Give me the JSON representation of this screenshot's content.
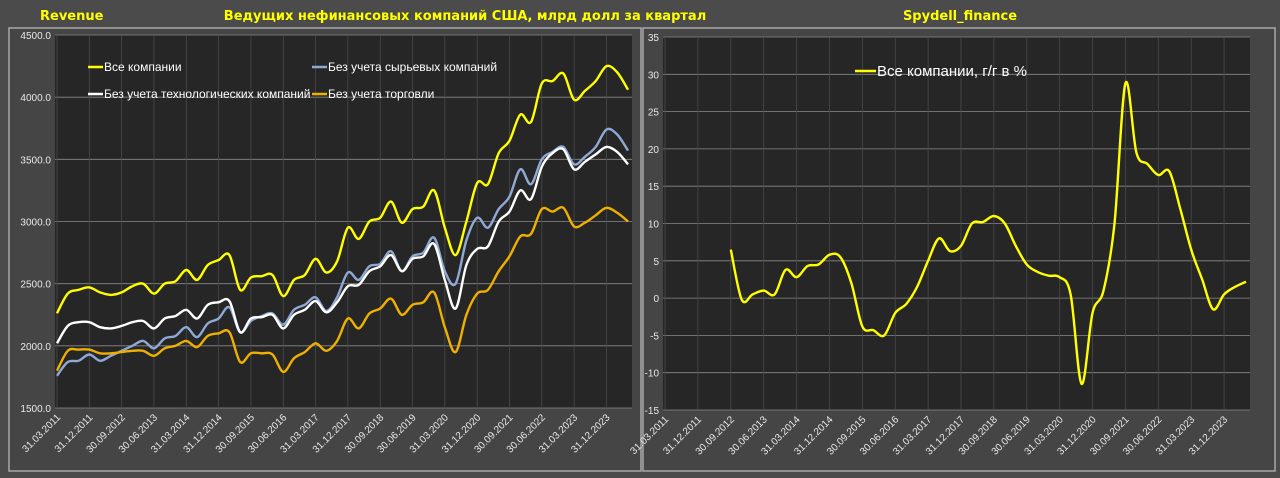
{
  "header": {
    "left_label": "Revenue",
    "main_title": "Ведущих нефинансовых компаний США, млрд долл за квартал",
    "right_label": "Spydell_finance"
  },
  "colors": {
    "yellow": "#ffff00",
    "white": "#ffffff",
    "blue": "#8fa9d6",
    "orange": "#f0b000"
  },
  "chart_data": [
    {
      "type": "line",
      "title": "Ведущих нефинансовых компаний США, млрд долл за квартал",
      "xlabel": "",
      "ylabel": "",
      "ylim": [
        1500,
        4500
      ],
      "yticks": [
        "1500.0",
        "2000.0",
        "2500.0",
        "3000.0",
        "3500.0",
        "4000.0",
        "4500.0"
      ],
      "x_tick_labels": [
        "31.03.2011",
        "31.12.2011",
        "30.09.2012",
        "30.06.2013",
        "31.03.2014",
        "31.12.2014",
        "30.09.2015",
        "30.06.2016",
        "31.03.2017",
        "31.12.2017",
        "30.09.2018",
        "30.06.2019",
        "31.03.2020",
        "31.12.2020",
        "30.09.2021",
        "30.06.2022",
        "31.03.2023",
        "31.12.2023"
      ],
      "x_tick_every_quarters": 3,
      "n_points": 54,
      "grid": true,
      "legend": "top, two columns",
      "series": [
        {
          "name": "Все компании",
          "color": "#ffff00",
          "values": [
            2262,
            2420,
            2450,
            2470,
            2430,
            2410,
            2430,
            2480,
            2500,
            2420,
            2500,
            2520,
            2610,
            2530,
            2650,
            2690,
            2730,
            2450,
            2550,
            2560,
            2570,
            2400,
            2530,
            2570,
            2700,
            2590,
            2680,
            2950,
            2860,
            3000,
            3030,
            3160,
            2990,
            3100,
            3120,
            3250,
            2950,
            2730,
            3000,
            3310,
            3300,
            3550,
            3650,
            3860,
            3800,
            4110,
            4130,
            4190,
            3980,
            4050,
            4130,
            4250,
            4200,
            4060
          ]
        },
        {
          "name": "Без учета сырьевых компаний",
          "color": "#8fa9d6",
          "values": [
            1760,
            1870,
            1880,
            1930,
            1880,
            1920,
            1960,
            2000,
            2040,
            1980,
            2060,
            2080,
            2150,
            2070,
            2180,
            2220,
            2310,
            2110,
            2200,
            2240,
            2260,
            2170,
            2290,
            2330,
            2390,
            2280,
            2390,
            2590,
            2530,
            2640,
            2660,
            2760,
            2600,
            2720,
            2750,
            2870,
            2600,
            2500,
            2850,
            3030,
            2950,
            3100,
            3200,
            3420,
            3300,
            3500,
            3560,
            3600,
            3460,
            3520,
            3600,
            3740,
            3700,
            3570
          ]
        },
        {
          "name": "Без учета технологических компаний",
          "color": "#ffffff",
          "values": [
            2020,
            2160,
            2190,
            2190,
            2150,
            2140,
            2160,
            2190,
            2200,
            2140,
            2220,
            2240,
            2290,
            2220,
            2330,
            2350,
            2360,
            2110,
            2220,
            2230,
            2250,
            2140,
            2250,
            2290,
            2360,
            2270,
            2350,
            2480,
            2490,
            2600,
            2640,
            2730,
            2600,
            2700,
            2720,
            2820,
            2530,
            2300,
            2650,
            2780,
            2800,
            3000,
            3080,
            3250,
            3180,
            3440,
            3550,
            3580,
            3420,
            3480,
            3540,
            3600,
            3560,
            3460
          ]
        },
        {
          "name": "Без учета торговли",
          "color": "#f0b000",
          "values": [
            1800,
            1960,
            1970,
            1970,
            1940,
            1940,
            1950,
            1960,
            1960,
            1920,
            1980,
            2000,
            2040,
            1990,
            2080,
            2100,
            2110,
            1870,
            1940,
            1940,
            1930,
            1790,
            1900,
            1950,
            2020,
            1960,
            2040,
            2220,
            2140,
            2260,
            2300,
            2380,
            2250,
            2330,
            2350,
            2430,
            2150,
            1950,
            2250,
            2420,
            2450,
            2600,
            2720,
            2880,
            2900,
            3100,
            3080,
            3110,
            2960,
            2990,
            3050,
            3110,
            3070,
            3000
          ]
        }
      ]
    },
    {
      "type": "line",
      "title": "",
      "xlabel": "",
      "ylabel": "",
      "ylim": [
        -15,
        35
      ],
      "yticks": [
        "-15",
        "-10",
        "-5",
        "0",
        "5",
        "10",
        "15",
        "20",
        "25",
        "30",
        "35"
      ],
      "x_tick_labels": [
        "31.03.2011",
        "31.12.2011",
        "30.09.2012",
        "30.06.2013",
        "31.03.2014",
        "31.12.2014",
        "30.09.2015",
        "30.06.2016",
        "31.03.2017",
        "31.12.2017",
        "30.09.2018",
        "30.06.2019",
        "31.03.2020",
        "31.12.2020",
        "30.09.2021",
        "30.06.2022",
        "31.03.2023",
        "31.12.2023"
      ],
      "x_tick_every_quarters": 3,
      "n_points": 54,
      "start_index": 6,
      "grid": true,
      "legend": "top-left",
      "series": [
        {
          "name": "Все компании, г/г в %",
          "color": "#ffff00",
          "values": [
            6.5,
            -0.2,
            0.5,
            1.0,
            0.5,
            3.8,
            2.8,
            4.3,
            4.5,
            5.8,
            5.5,
            2.0,
            -3.8,
            -4.3,
            -5.0,
            -2.0,
            -0.8,
            1.5,
            5.0,
            8.0,
            6.3,
            7.0,
            10.0,
            10.2,
            11.0,
            10.0,
            7.0,
            4.5,
            3.5,
            3.0,
            2.8,
            0.5,
            -11.5,
            -2.0,
            1.0,
            10.0,
            28.8,
            19.5,
            18.0,
            16.5,
            17.0,
            12.0,
            6.5,
            2.5,
            -1.5,
            0.5,
            1.5,
            2.2
          ]
        }
      ]
    }
  ]
}
